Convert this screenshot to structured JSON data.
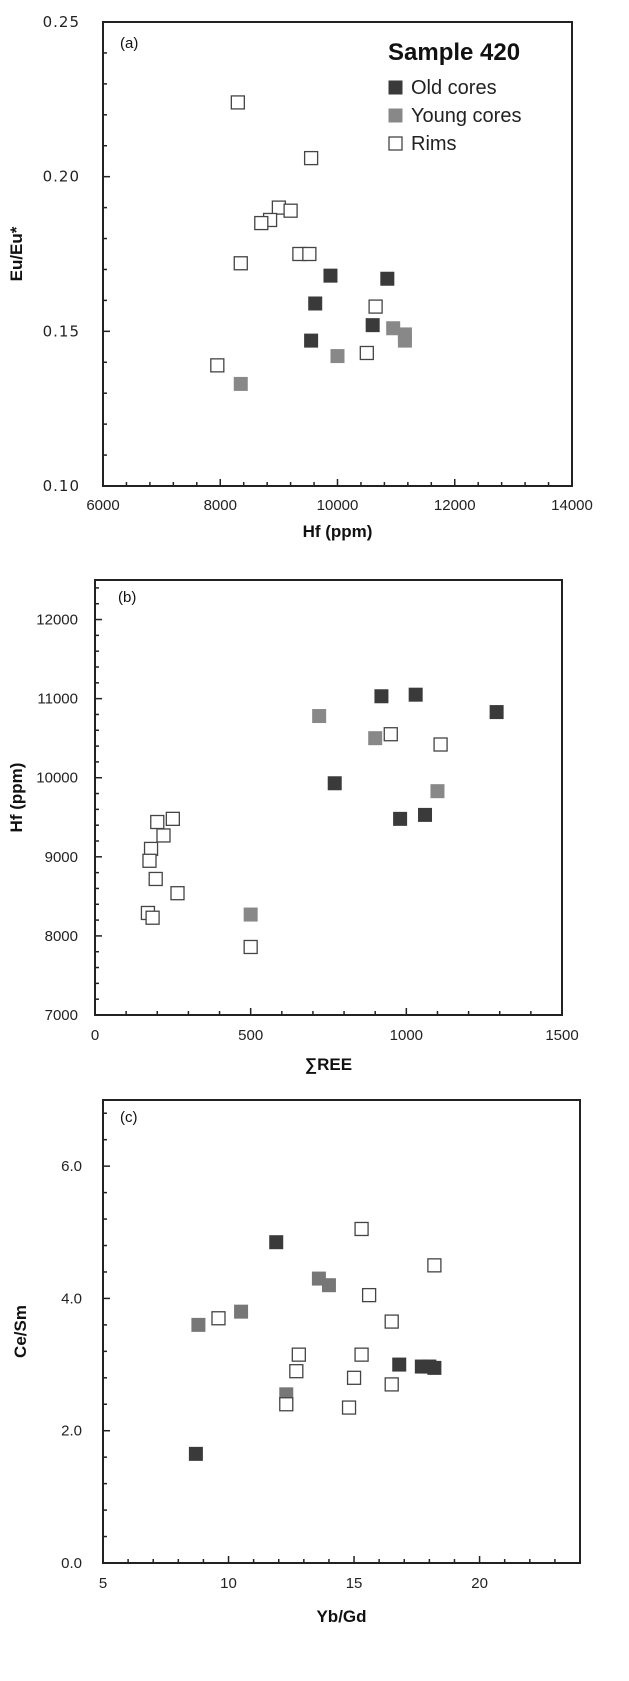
{
  "chart_data": [
    {
      "type": "scatter",
      "panel_label": "(a)",
      "title": "Sample 420",
      "xlabel": "Hf (ppm)",
      "ylabel": "Eu/Eu*",
      "xlim": [
        6000,
        14000
      ],
      "ylim": [
        0.1,
        0.25
      ],
      "x_ticks": [
        "6000",
        "8000",
        "10000",
        "12000",
        "14000"
      ],
      "y_ticks": [
        "0.10",
        "0.15",
        "0.20",
        "0.25"
      ],
      "grid": false,
      "legend_position": "top-right",
      "series": [
        {
          "name": "Old cores",
          "color": "#3a3a3a",
          "marker": "filled-square",
          "points": [
            [
              9880,
              0.168
            ],
            [
              10850,
              0.167
            ],
            [
              9620,
              0.159
            ],
            [
              10600,
              0.152
            ],
            [
              9550,
              0.147
            ]
          ]
        },
        {
          "name": "Young cores",
          "color": "#888888",
          "marker": "filled-square",
          "points": [
            [
              10950,
              0.151
            ],
            [
              11150,
              0.149
            ],
            [
              11150,
              0.147
            ],
            [
              10000,
              0.142
            ],
            [
              8350,
              0.133
            ]
          ]
        },
        {
          "name": "Rims",
          "color": "#ffffff",
          "marker": "open-square",
          "points": [
            [
              8300,
              0.224
            ],
            [
              9550,
              0.206
            ],
            [
              9000,
              0.19
            ],
            [
              9200,
              0.189
            ],
            [
              8850,
              0.186
            ],
            [
              8700,
              0.185
            ],
            [
              9350,
              0.175
            ],
            [
              9520,
              0.175
            ],
            [
              8350,
              0.172
            ],
            [
              10650,
              0.158
            ],
            [
              10500,
              0.143
            ],
            [
              7950,
              0.139
            ]
          ]
        }
      ]
    },
    {
      "type": "scatter",
      "panel_label": "(b)",
      "xlabel": "∑REE",
      "ylabel": "Hf (ppm)",
      "xlim": [
        0,
        1500
      ],
      "ylim": [
        7000,
        12500
      ],
      "x_ticks": [
        "0",
        "500",
        "1000",
        "1500"
      ],
      "y_ticks": [
        "7000",
        "8000",
        "9000",
        "10000",
        "11000",
        "12000"
      ],
      "grid": false,
      "series": [
        {
          "name": "Old cores",
          "color": "#3a3a3a",
          "marker": "filled-square",
          "points": [
            [
              920,
              11030
            ],
            [
              1030,
              11050
            ],
            [
              1290,
              10830
            ],
            [
              770,
              9930
            ],
            [
              980,
              9480
            ],
            [
              1060,
              9530
            ]
          ]
        },
        {
          "name": "Young cores",
          "color": "#888888",
          "marker": "filled-square",
          "points": [
            [
              720,
              10780
            ],
            [
              900,
              10500
            ],
            [
              1100,
              9830
            ],
            [
              500,
              8270
            ]
          ]
        },
        {
          "name": "Rims",
          "color": "#ffffff",
          "marker": "open-square",
          "points": [
            [
              950,
              10550
            ],
            [
              1110,
              10420
            ],
            [
              250,
              9480
            ],
            [
              200,
              9440
            ],
            [
              220,
              9270
            ],
            [
              180,
              9100
            ],
            [
              175,
              8950
            ],
            [
              195,
              8720
            ],
            [
              265,
              8540
            ],
            [
              170,
              8290
            ],
            [
              185,
              8230
            ],
            [
              500,
              7860
            ]
          ]
        }
      ]
    },
    {
      "type": "scatter",
      "panel_label": "(c)",
      "xlabel": "Yb/Gd",
      "ylabel": "Ce/Sm",
      "xlim": [
        5,
        24
      ],
      "ylim": [
        0.0,
        7.0
      ],
      "x_ticks": [
        "5",
        "10",
        "15",
        "20"
      ],
      "y_ticks": [
        "0.0",
        "2.0",
        "4.0",
        "6.0"
      ],
      "grid": false,
      "series": [
        {
          "name": "Old cores",
          "color": "#3a3a3a",
          "marker": "filled-square",
          "points": [
            [
              11.9,
              4.85
            ],
            [
              8.7,
              1.65
            ],
            [
              16.8,
              3.0
            ],
            [
              17.7,
              2.97
            ],
            [
              18.0,
              2.97
            ],
            [
              18.2,
              2.95
            ]
          ]
        },
        {
          "name": "Young cores",
          "color": "#777777",
          "marker": "filled-square",
          "points": [
            [
              13.6,
              4.3
            ],
            [
              14.0,
              4.2
            ],
            [
              10.5,
              3.8
            ],
            [
              8.8,
              3.6
            ],
            [
              12.3,
              2.55
            ]
          ]
        },
        {
          "name": "Rims",
          "color": "#ffffff",
          "marker": "open-square",
          "points": [
            [
              15.3,
              5.05
            ],
            [
              18.2,
              4.5
            ],
            [
              15.6,
              4.05
            ],
            [
              16.5,
              3.65
            ],
            [
              9.6,
              3.7
            ],
            [
              12.8,
              3.15
            ],
            [
              15.3,
              3.15
            ],
            [
              12.7,
              2.9
            ],
            [
              15.0,
              2.8
            ],
            [
              16.5,
              2.7
            ],
            [
              12.3,
              2.4
            ],
            [
              14.8,
              2.35
            ]
          ]
        }
      ]
    }
  ]
}
